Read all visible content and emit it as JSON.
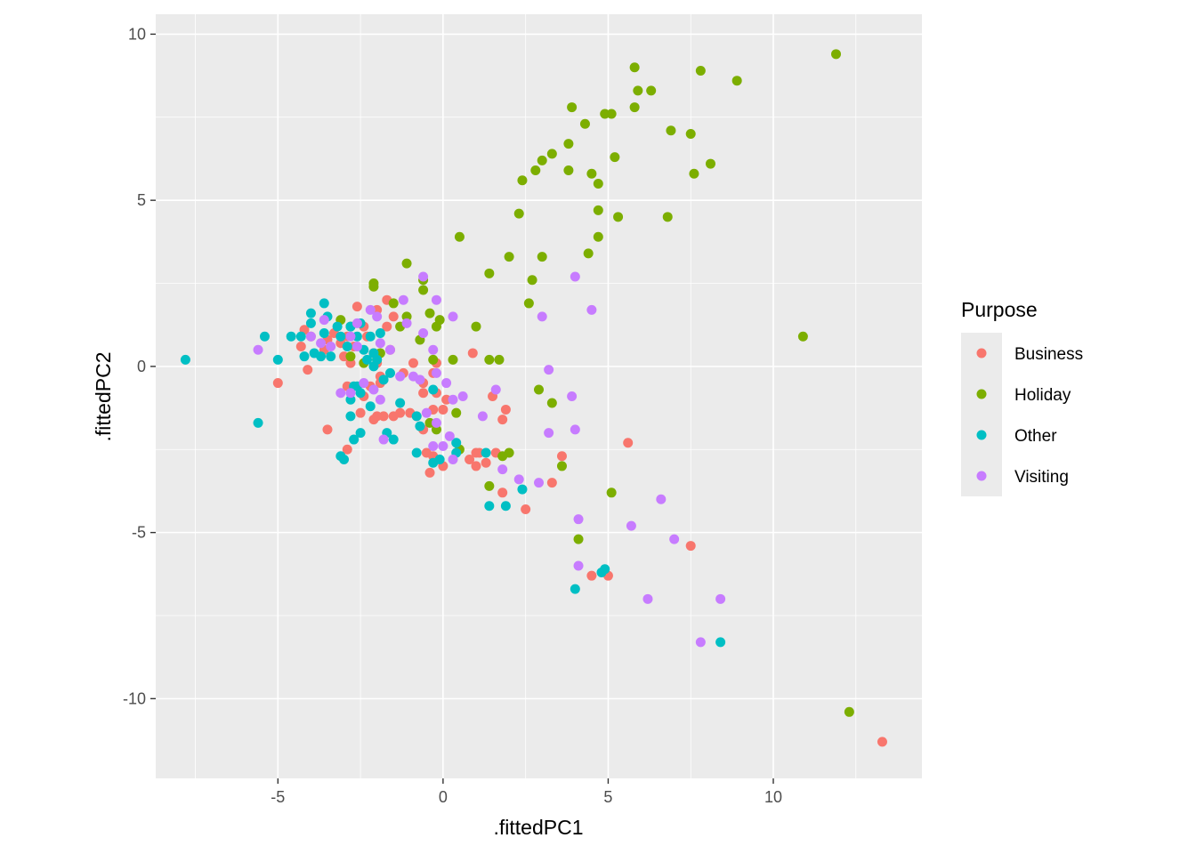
{
  "chart_data": {
    "type": "scatter",
    "title": "",
    "xlabel": ".fittedPC1",
    "ylabel": ".fittedPC2",
    "xlim": [
      -8.7,
      14.5
    ],
    "ylim": [
      -12.4,
      10.6
    ],
    "xticks": [
      -5,
      0,
      5,
      10
    ],
    "yticks": [
      -10,
      -5,
      0,
      5,
      10
    ],
    "xtick_labels": [
      "-5",
      "0",
      "5",
      "10"
    ],
    "ytick_labels": [
      "-10",
      "-5",
      "0",
      "5",
      "10"
    ],
    "grid": true,
    "legend": {
      "title": "Purpose",
      "position": "right"
    },
    "series": [
      {
        "name": "Business",
        "color": "#F8766D",
        "points": [
          [
            13.3,
            -11.3
          ],
          [
            7.5,
            -5.4
          ],
          [
            5.6,
            -2.3
          ],
          [
            5.0,
            -6.3
          ],
          [
            4.5,
            -6.3
          ],
          [
            3.6,
            -2.7
          ],
          [
            3.3,
            -3.5
          ],
          [
            2.5,
            -4.3
          ],
          [
            1.8,
            -3.8
          ],
          [
            1.8,
            -1.6
          ],
          [
            1.9,
            -1.3
          ],
          [
            1.6,
            -2.6
          ],
          [
            1.3,
            -2.9
          ],
          [
            1.0,
            -3.0
          ],
          [
            1.1,
            -2.6
          ],
          [
            0.9,
            0.4
          ],
          [
            1.5,
            -0.9
          ],
          [
            0.8,
            -2.8
          ],
          [
            0.0,
            -3.0
          ],
          [
            -0.4,
            -3.2
          ],
          [
            -0.3,
            -2.7
          ],
          [
            -0.5,
            -2.6
          ],
          [
            -0.6,
            -1.9
          ],
          [
            -0.8,
            -1.5
          ],
          [
            -0.6,
            -0.8
          ],
          [
            -0.2,
            -0.8
          ],
          [
            0.1,
            -1.0
          ],
          [
            -0.3,
            -1.3
          ],
          [
            -1.0,
            -1.4
          ],
          [
            -1.2,
            -0.2
          ],
          [
            -0.9,
            0.1
          ],
          [
            -1.3,
            -1.4
          ],
          [
            -1.5,
            -1.5
          ],
          [
            -1.8,
            -1.5
          ],
          [
            -2.0,
            -1.5
          ],
          [
            -2.1,
            -1.6
          ],
          [
            -2.5,
            -1.4
          ],
          [
            -2.9,
            -2.5
          ],
          [
            -3.5,
            -1.9
          ],
          [
            -5.0,
            -0.5
          ],
          [
            -4.1,
            -0.1
          ],
          [
            -4.3,
            0.6
          ],
          [
            -4.0,
            0.9
          ],
          [
            -4.2,
            1.1
          ],
          [
            -3.5,
            0.8
          ],
          [
            -3.3,
            1.0
          ],
          [
            -3.1,
            0.7
          ],
          [
            -2.9,
            0.9
          ],
          [
            -2.8,
            0.1
          ],
          [
            -2.7,
            0.6
          ],
          [
            -2.6,
            1.8
          ],
          [
            -2.4,
            1.2
          ],
          [
            -2.3,
            0.9
          ],
          [
            -2.1,
            0.4
          ],
          [
            -2.0,
            0.1
          ],
          [
            -1.9,
            -0.3
          ],
          [
            -1.7,
            1.2
          ],
          [
            -1.7,
            2.0
          ],
          [
            -1.6,
            0.5
          ],
          [
            -1.5,
            1.5
          ],
          [
            -3.6,
            0.5
          ],
          [
            -2.0,
            1.7
          ],
          [
            -2.2,
            -0.6
          ],
          [
            -1.9,
            -0.5
          ],
          [
            -2.4,
            -0.9
          ],
          [
            -2.9,
            -0.6
          ],
          [
            -3.0,
            0.3
          ],
          [
            -0.6,
            -0.5
          ],
          [
            -0.3,
            -0.2
          ],
          [
            -0.2,
            0.1
          ],
          [
            1.0,
            -2.6
          ],
          [
            0.0,
            -1.3
          ]
        ]
      },
      {
        "name": "Holiday",
        "color": "#7CAE00",
        "points": [
          [
            11.9,
            9.4
          ],
          [
            12.3,
            -10.4
          ],
          [
            10.9,
            0.9
          ],
          [
            8.9,
            8.6
          ],
          [
            7.8,
            8.9
          ],
          [
            7.5,
            7.0
          ],
          [
            7.6,
            5.8
          ],
          [
            8.1,
            6.1
          ],
          [
            6.9,
            7.1
          ],
          [
            6.8,
            4.5
          ],
          [
            6.3,
            8.3
          ],
          [
            5.9,
            8.3
          ],
          [
            5.8,
            9.0
          ],
          [
            5.8,
            7.8
          ],
          [
            5.2,
            6.3
          ],
          [
            5.3,
            4.5
          ],
          [
            5.1,
            7.6
          ],
          [
            4.9,
            7.6
          ],
          [
            4.7,
            5.5
          ],
          [
            4.7,
            4.7
          ],
          [
            4.5,
            5.8
          ],
          [
            4.7,
            3.9
          ],
          [
            4.4,
            3.4
          ],
          [
            4.3,
            7.3
          ],
          [
            3.9,
            7.8
          ],
          [
            3.8,
            6.7
          ],
          [
            3.8,
            5.9
          ],
          [
            3.3,
            6.4
          ],
          [
            3.0,
            6.2
          ],
          [
            2.8,
            5.9
          ],
          [
            2.4,
            5.6
          ],
          [
            2.3,
            4.6
          ],
          [
            2.0,
            3.3
          ],
          [
            3.0,
            3.3
          ],
          [
            2.7,
            2.6
          ],
          [
            2.6,
            1.9
          ],
          [
            1.4,
            2.8
          ],
          [
            0.5,
            3.9
          ],
          [
            1.0,
            1.2
          ],
          [
            1.4,
            0.2
          ],
          [
            1.7,
            0.2
          ],
          [
            0.3,
            0.2
          ],
          [
            -0.3,
            0.2
          ],
          [
            -0.2,
            1.2
          ],
          [
            -0.4,
            1.6
          ],
          [
            -0.1,
            1.4
          ],
          [
            -0.6,
            2.3
          ],
          [
            -0.6,
            2.6
          ],
          [
            -1.1,
            3.1
          ],
          [
            -1.1,
            1.5
          ],
          [
            -1.5,
            1.9
          ],
          [
            -2.1,
            2.4
          ],
          [
            -2.1,
            2.5
          ],
          [
            -3.1,
            1.4
          ],
          [
            -2.8,
            1.2
          ],
          [
            -1.3,
            1.2
          ],
          [
            -0.7,
            0.8
          ],
          [
            -0.2,
            -1.9
          ],
          [
            -0.4,
            -1.7
          ],
          [
            0.4,
            -1.4
          ],
          [
            0.5,
            -2.5
          ],
          [
            2.0,
            -2.6
          ],
          [
            1.8,
            -2.7
          ],
          [
            1.4,
            -3.6
          ],
          [
            2.9,
            -0.7
          ],
          [
            3.3,
            -1.1
          ],
          [
            3.6,
            -3.0
          ],
          [
            5.1,
            -3.8
          ],
          [
            4.1,
            -5.2
          ],
          [
            -2.0,
            0.2
          ],
          [
            -1.9,
            0.4
          ],
          [
            -2.4,
            0.1
          ],
          [
            -2.8,
            0.3
          ]
        ]
      },
      {
        "name": "Other",
        "color": "#00BFC4",
        "points": [
          [
            -7.8,
            0.2
          ],
          [
            -5.6,
            -1.7
          ],
          [
            -5.4,
            0.9
          ],
          [
            -5.0,
            0.2
          ],
          [
            -4.6,
            0.9
          ],
          [
            -4.3,
            0.9
          ],
          [
            -4.2,
            0.3
          ],
          [
            -4.0,
            1.3
          ],
          [
            -4.0,
            1.6
          ],
          [
            -3.9,
            0.4
          ],
          [
            -3.7,
            0.3
          ],
          [
            -3.6,
            1.9
          ],
          [
            -3.5,
            1.5
          ],
          [
            -3.6,
            1.0
          ],
          [
            -3.2,
            1.2
          ],
          [
            -3.1,
            0.9
          ],
          [
            -2.9,
            0.6
          ],
          [
            -2.8,
            1.2
          ],
          [
            -2.6,
            0.9
          ],
          [
            -2.5,
            1.3
          ],
          [
            -2.4,
            0.5
          ],
          [
            -2.2,
            0.9
          ],
          [
            -2.1,
            0.4
          ],
          [
            -2.0,
            0.2
          ],
          [
            -1.9,
            1.0
          ],
          [
            -1.8,
            -0.4
          ],
          [
            -2.2,
            -1.2
          ],
          [
            -2.5,
            -0.8
          ],
          [
            -2.7,
            -0.6
          ],
          [
            -2.8,
            -1.0
          ],
          [
            -2.8,
            -1.5
          ],
          [
            -2.7,
            -2.2
          ],
          [
            -2.5,
            -2.0
          ],
          [
            -3.1,
            -2.7
          ],
          [
            -3.0,
            -2.8
          ],
          [
            -1.7,
            -2.0
          ],
          [
            -1.5,
            -2.2
          ],
          [
            -1.3,
            -1.1
          ],
          [
            -0.8,
            -1.5
          ],
          [
            -0.7,
            -1.8
          ],
          [
            -0.8,
            -2.6
          ],
          [
            -0.3,
            -2.9
          ],
          [
            -0.1,
            -2.8
          ],
          [
            0.4,
            -2.3
          ],
          [
            0.4,
            -2.6
          ],
          [
            1.3,
            -2.6
          ],
          [
            1.4,
            -4.2
          ],
          [
            1.9,
            -4.2
          ],
          [
            2.4,
            -3.7
          ],
          [
            4.0,
            -6.7
          ],
          [
            4.8,
            -6.2
          ],
          [
            4.9,
            -6.1
          ],
          [
            8.4,
            -8.3
          ],
          [
            -2.3,
            0.2
          ],
          [
            -2.1,
            0.0
          ],
          [
            -1.6,
            -0.2
          ],
          [
            -0.3,
            -0.7
          ],
          [
            -3.4,
            0.3
          ],
          [
            -2.6,
            -0.6
          ]
        ]
      },
      {
        "name": "Visiting",
        "color": "#C77CFF",
        "points": [
          [
            -5.6,
            0.5
          ],
          [
            -4.0,
            0.9
          ],
          [
            -3.7,
            0.7
          ],
          [
            -3.4,
            0.6
          ],
          [
            -2.8,
            0.9
          ],
          [
            -2.6,
            0.6
          ],
          [
            -2.2,
            1.7
          ],
          [
            -2.0,
            1.5
          ],
          [
            -1.9,
            0.7
          ],
          [
            -1.6,
            0.5
          ],
          [
            -1.2,
            2.0
          ],
          [
            -1.1,
            1.3
          ],
          [
            -0.6,
            2.7
          ],
          [
            -0.2,
            2.0
          ],
          [
            0.3,
            1.5
          ],
          [
            -0.3,
            0.5
          ],
          [
            -0.6,
            1.0
          ],
          [
            -0.9,
            -0.3
          ],
          [
            -0.2,
            -0.2
          ],
          [
            -0.2,
            -1.7
          ],
          [
            0.1,
            -0.5
          ],
          [
            0.3,
            -1.0
          ],
          [
            0.6,
            -0.9
          ],
          [
            0.2,
            -2.1
          ],
          [
            -0.5,
            -1.4
          ],
          [
            1.6,
            -0.7
          ],
          [
            1.2,
            -1.5
          ],
          [
            1.8,
            -3.1
          ],
          [
            2.3,
            -3.4
          ],
          [
            2.9,
            -3.5
          ],
          [
            3.2,
            -2.0
          ],
          [
            3.2,
            -0.1
          ],
          [
            3.9,
            -0.9
          ],
          [
            4.0,
            -1.9
          ],
          [
            4.0,
            2.7
          ],
          [
            4.5,
            1.7
          ],
          [
            3.0,
            1.5
          ],
          [
            -2.8,
            -0.8
          ],
          [
            -2.4,
            -0.5
          ],
          [
            -2.1,
            -0.7
          ],
          [
            -1.9,
            -1.0
          ],
          [
            -1.8,
            -2.2
          ],
          [
            -3.1,
            -0.8
          ],
          [
            -2.6,
            1.3
          ],
          [
            -3.6,
            1.4
          ],
          [
            -0.3,
            -2.4
          ],
          [
            0.0,
            -2.4
          ],
          [
            0.3,
            -2.8
          ],
          [
            4.1,
            -4.6
          ],
          [
            4.1,
            -6.0
          ],
          [
            5.7,
            -4.8
          ],
          [
            6.6,
            -4.0
          ],
          [
            7.0,
            -5.2
          ],
          [
            6.2,
            -7.0
          ],
          [
            7.8,
            -8.3
          ],
          [
            8.4,
            -7.0
          ],
          [
            -1.3,
            -0.3
          ],
          [
            -0.7,
            -0.4
          ]
        ]
      }
    ]
  }
}
